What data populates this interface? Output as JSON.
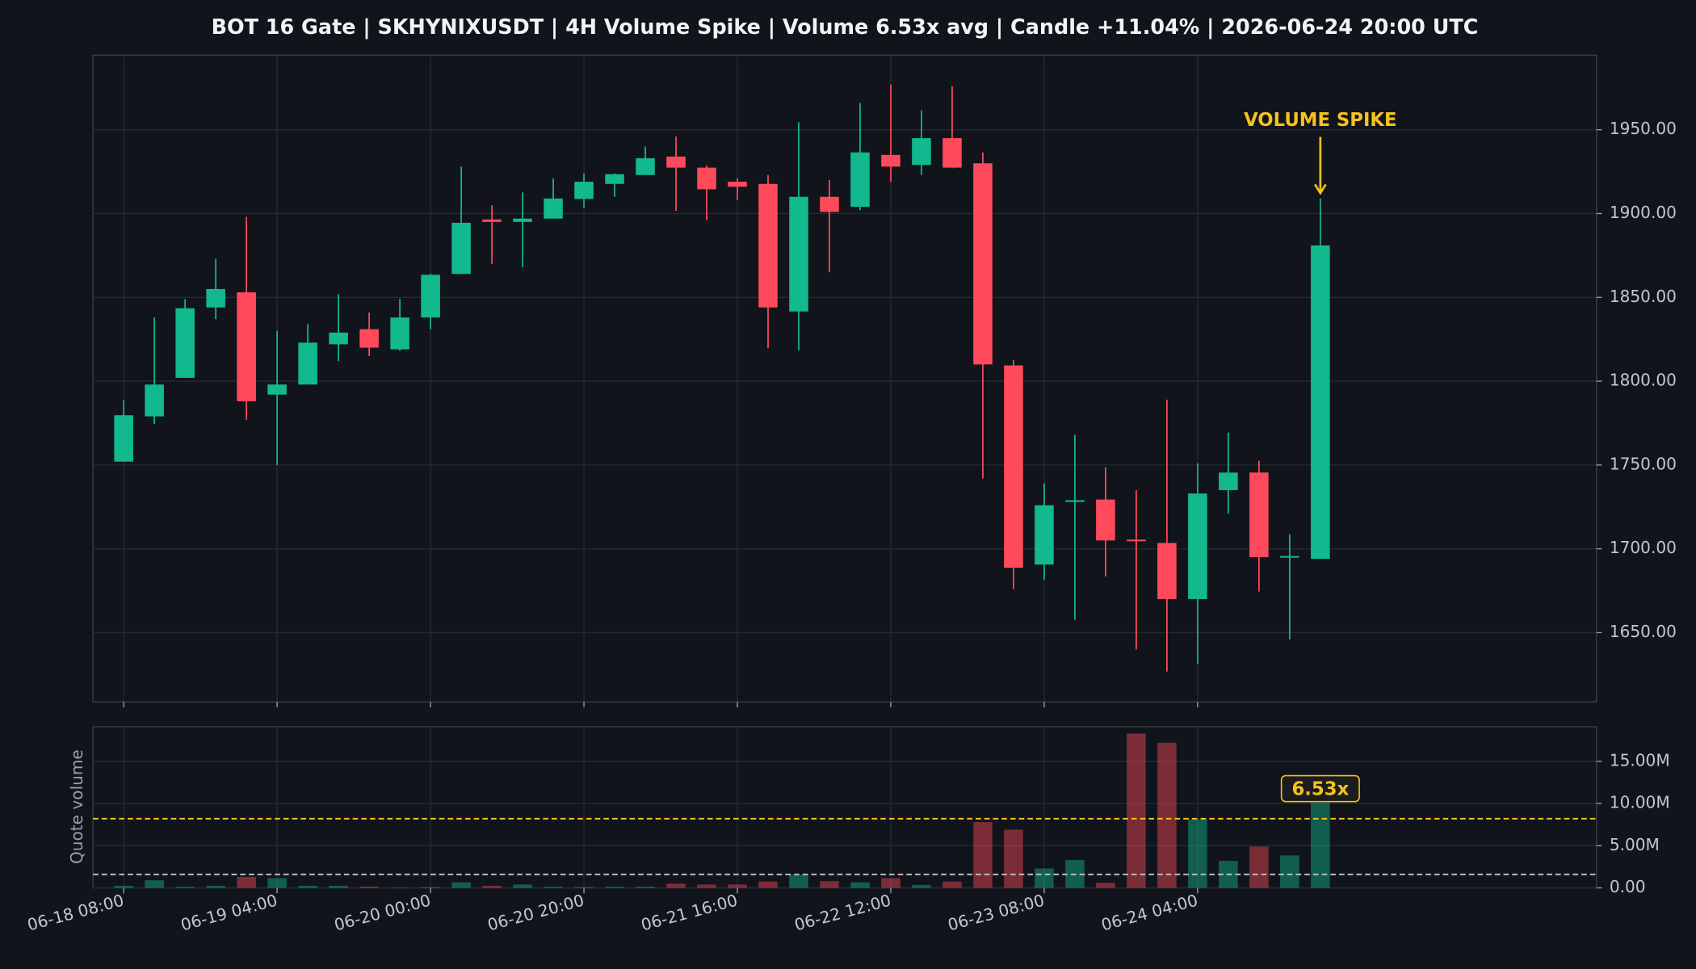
{
  "chart_data": {
    "type": "candlestick",
    "title": "BOT 16 Gate | SKHYNIXUSDT | 4H Volume Spike | Volume 6.53x avg | Candle +11.04% | 2026-06-24 20:00 UTC",
    "x": [
      "06-18 08:00",
      null,
      null,
      null,
      null,
      "06-19 04:00",
      null,
      null,
      null,
      null,
      "06-20 00:00",
      null,
      null,
      null,
      null,
      "06-20 20:00",
      null,
      null,
      null,
      null,
      "06-21 16:00",
      null,
      null,
      null,
      null,
      "06-22 12:00",
      null,
      null,
      null,
      null,
      "06-23 08:00",
      null,
      null,
      null,
      null,
      "06-24 04:00",
      null,
      null,
      null,
      null
    ],
    "open": [
      1752,
      1779,
      1802,
      1844,
      1853,
      1792,
      1798,
      1822,
      1831,
      1819,
      1838,
      1864,
      1896.5,
      1895,
      1897,
      1908.7,
      1917.7,
      1923,
      1934,
      1927.4,
      1919,
      1917.7,
      1841.6,
      1910,
      1904,
      1935,
      1929,
      1945,
      1930,
      1809.4,
      1690.6,
      1728,
      1729.4,
      1705.5,
      1703.5,
      1670,
      1735,
      1745.5,
      1694.7,
      1694
    ],
    "high": [
      1788.7,
      1838,
      1849,
      1873,
      1898,
      1830,
      1834,
      1852,
      1841,
      1849,
      1864,
      1928,
      1905,
      1912.6,
      1921,
      1924,
      1924,
      1940,
      1946,
      1928.7,
      1921,
      1923,
      1954.5,
      1920,
      1966,
      1977,
      1961.6,
      1976,
      1936.5,
      1812.6,
      1739,
      1768,
      1748.7,
      1735,
      1789,
      1751,
      1769.4,
      1752.6,
      1708.7,
      1909
    ],
    "low": [
      1752,
      1774.5,
      1802,
      1837,
      1777,
      1750,
      1798,
      1812,
      1815,
      1818,
      1831,
      1864,
      1870,
      1868,
      1897,
      1903.5,
      1910,
      1923,
      1901.6,
      1896,
      1908,
      1819.7,
      1818.4,
      1865,
      1902,
      1919,
      1923,
      1927,
      1742,
      1676,
      1681.6,
      1657.7,
      1683.5,
      1640,
      1626.8,
      1631.3,
      1721,
      1674.5,
      1646,
      1694
    ],
    "close": [
      1779.7,
      1798,
      1843.5,
      1855,
      1788,
      1798,
      1823,
      1829,
      1820,
      1838,
      1863.5,
      1894.5,
      1895,
      1897,
      1909,
      1919,
      1923.5,
      1933,
      1927.4,
      1914.5,
      1916,
      1844,
      1910,
      1901,
      1936.5,
      1928,
      1945,
      1927.4,
      1810,
      1688.7,
      1726,
      1729,
      1705,
      1704.5,
      1670,
      1733,
      1745.5,
      1695,
      1695.7,
      1881
    ],
    "up_color": "#12b88e",
    "down_color": "#ff4a5c",
    "ylim": [
      1608.7,
      1994.5
    ],
    "yticks": [
      {
        "value": 1650,
        "label": "1650.00"
      },
      {
        "value": 1700,
        "label": "1700.00"
      },
      {
        "value": 1750,
        "label": "1750.00"
      },
      {
        "value": 1800,
        "label": "1800.00"
      },
      {
        "value": 1850,
        "label": "1850.00"
      },
      {
        "value": 1900,
        "label": "1900.00"
      },
      {
        "value": 1950,
        "label": "1950.00"
      }
    ],
    "grid": true,
    "annotation": {
      "text": "VOLUME SPIKE",
      "index": 39,
      "color": "#f5c21b"
    },
    "volume": {
      "ylabel": "Quote volume",
      "values": [
        0.25,
        0.9,
        0.15,
        0.25,
        1.3,
        1.15,
        0.25,
        0.25,
        0.15,
        0.05,
        0.1,
        0.65,
        0.25,
        0.4,
        0.15,
        0.1,
        0.15,
        0.15,
        0.5,
        0.4,
        0.4,
        0.75,
        1.55,
        0.8,
        0.65,
        1.15,
        0.35,
        0.75,
        7.8,
        6.9,
        2.3,
        3.3,
        0.6,
        18.3,
        17.2,
        8.1,
        3.2,
        4.9,
        3.85,
        10.1
      ],
      "ylim": [
        0,
        19.1
      ],
      "yticks": [
        {
          "value": 0,
          "label": "0.00"
        },
        {
          "value": 5,
          "label": "5.00M"
        },
        {
          "value": 10,
          "label": "10.00M"
        },
        {
          "value": 15,
          "label": "15.00M"
        }
      ],
      "reference_lines": [
        {
          "value": 1.6,
          "color": "#b8bcc4"
        },
        {
          "value": 8.2,
          "color": "#f5c21b"
        }
      ],
      "annotation": {
        "text": "6.53x",
        "index": 39,
        "color": "#f5c21b"
      }
    }
  }
}
